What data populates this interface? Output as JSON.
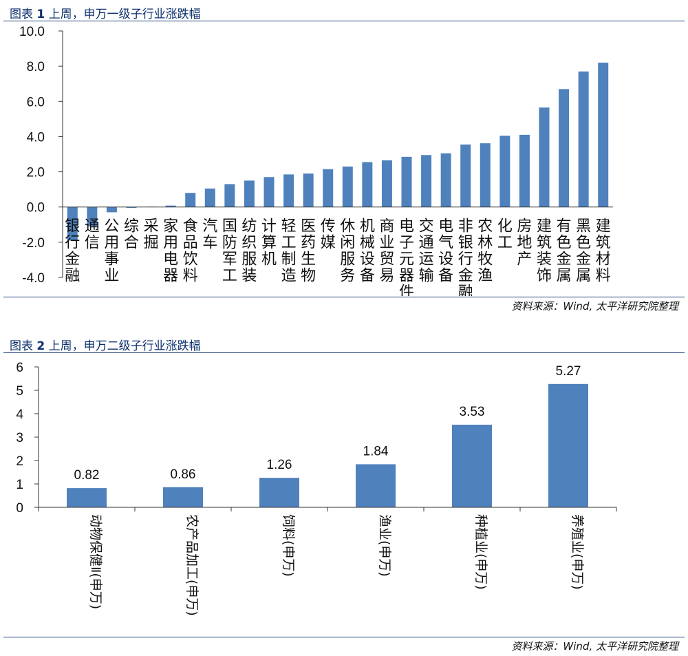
{
  "figure1": {
    "title_prefix": "图表",
    "title_number": "1",
    "title_text": "上周，申万一级子行业涨跌幅",
    "source": "资料来源：Wind, 太平洋研究院整理"
  },
  "figure2": {
    "title_prefix": "图表",
    "title_number": "2",
    "title_text": "上周，申万二级子行业涨跌幅",
    "source": "资料来源：Wind, 太平洋研究院整理"
  },
  "colors": {
    "bar": "#4f81bd",
    "rule": "#1f3f7a",
    "title": "#0b2f6b"
  },
  "chart_data": [
    {
      "type": "bar",
      "title": "",
      "xlabel": "",
      "ylabel": "",
      "ylim": [
        -4.0,
        10.0
      ],
      "yticks": [
        "10.0",
        "8.0",
        "6.0",
        "4.0",
        "2.0",
        "0.0",
        "-2.0",
        "-4.0"
      ],
      "ytick_values": [
        10,
        8,
        6,
        4,
        2,
        0,
        -2,
        -4
      ],
      "grid": false,
      "categories": [
        "银行金融",
        "通信",
        "公用事业",
        "综合",
        "采掘",
        "家用电器",
        "食品饮料",
        "汽车",
        "国防军工",
        "纺织服装",
        "计算机",
        "轻工制造",
        "医药生物",
        "传媒",
        "休闲服务",
        "机械设备",
        "商业贸易",
        "电子元器件",
        "交通运输",
        "电气设备",
        "非银行金融",
        "农林牧渔",
        "化工",
        "房地产",
        "建筑装饰",
        "有色金属",
        "黑色金属",
        "建筑材料"
      ],
      "values": [
        -1.9,
        -1.1,
        -0.3,
        -0.05,
        0.02,
        0.08,
        0.8,
        1.05,
        1.3,
        1.5,
        1.7,
        1.85,
        1.9,
        2.15,
        2.3,
        2.55,
        2.65,
        2.85,
        2.95,
        3.05,
        3.55,
        3.62,
        4.05,
        4.1,
        5.65,
        6.7,
        7.7,
        8.2
      ]
    },
    {
      "type": "bar",
      "title": "",
      "xlabel": "",
      "ylabel": "",
      "ylim": [
        0,
        6
      ],
      "yticks": [
        "6",
        "5",
        "4",
        "3",
        "2",
        "1",
        "0"
      ],
      "ytick_values": [
        6,
        5,
        4,
        3,
        2,
        1,
        0
      ],
      "grid": false,
      "categories": [
        "动物保健Ⅱ(申万)",
        "农产品加工(申万)",
        "饲料(申万)",
        "渔业(申万)",
        "种植业(申万)",
        "养殖业(申万)"
      ],
      "values": [
        0.82,
        0.86,
        1.26,
        1.84,
        3.53,
        5.27
      ],
      "data_labels": [
        "0.82",
        "0.86",
        "1.26",
        "1.84",
        "3.53",
        "5.27"
      ]
    }
  ]
}
